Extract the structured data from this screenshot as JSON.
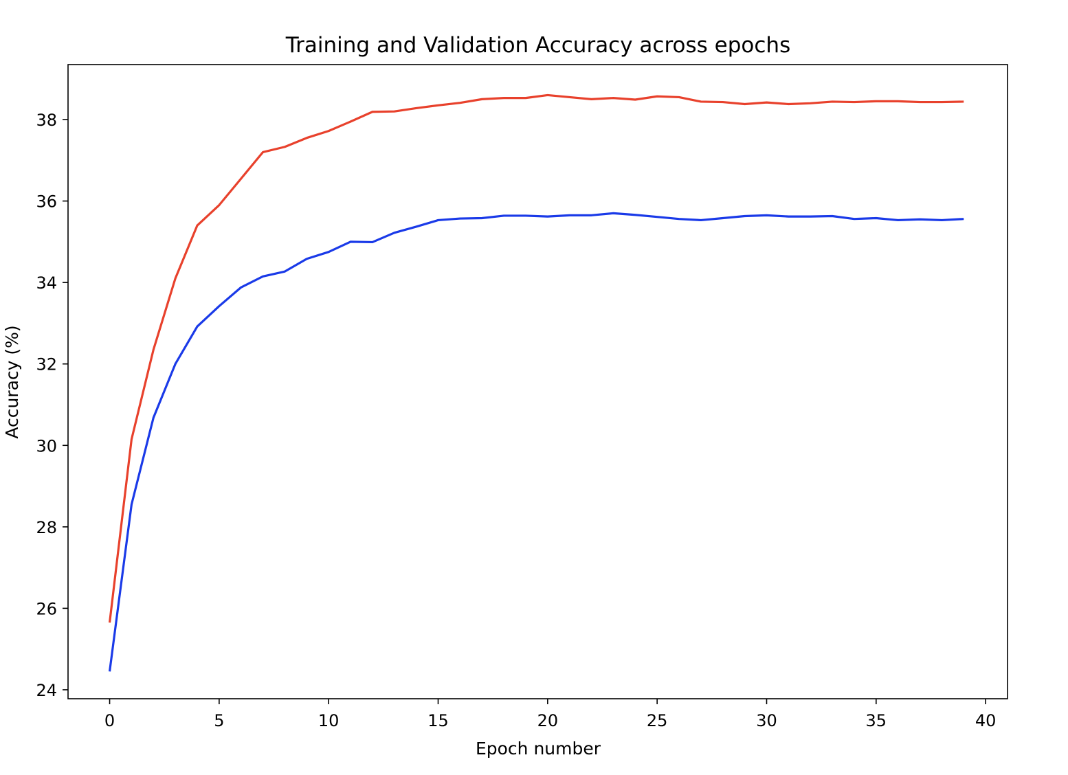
{
  "chart_data": {
    "type": "line",
    "title": "Training and Validation Accuracy across epochs",
    "xlabel": "Epoch number",
    "ylabel": "Accuracy (%)",
    "xlim": [
      -1.9,
      41
    ],
    "ylim": [
      23.78,
      39.35
    ],
    "xticks": [
      0,
      5,
      10,
      15,
      20,
      25,
      30,
      35,
      40
    ],
    "xtick_labels": [
      "0",
      "5",
      "10",
      "15",
      "20",
      "25",
      "30",
      "35",
      "40"
    ],
    "yticks": [
      24,
      26,
      28,
      30,
      32,
      34,
      36,
      38
    ],
    "ytick_labels": [
      "24",
      "26",
      "28",
      "30",
      "32",
      "34",
      "36",
      "38"
    ],
    "grid": false,
    "legend": "none",
    "x": [
      0,
      1,
      2,
      3,
      4,
      5,
      6,
      7,
      8,
      9,
      10,
      11,
      12,
      13,
      14,
      15,
      16,
      17,
      18,
      19,
      20,
      21,
      22,
      23,
      24,
      25,
      26,
      27,
      28,
      29,
      30,
      31,
      32,
      33,
      34,
      35,
      36,
      37,
      38,
      39
    ],
    "series": [
      {
        "color": "#e8412c",
        "values": [
          25.65,
          30.15,
          32.35,
          34.1,
          35.4,
          35.9,
          36.55,
          37.2,
          37.33,
          37.55,
          37.72,
          37.95,
          38.19,
          38.2,
          38.28,
          38.35,
          38.41,
          38.5,
          38.53,
          38.53,
          38.6,
          38.55,
          38.5,
          38.53,
          38.49,
          38.57,
          38.55,
          38.44,
          38.43,
          38.38,
          38.42,
          38.38,
          38.4,
          38.44,
          38.43,
          38.45,
          38.45,
          38.43,
          38.43,
          38.44
        ]
      },
      {
        "color": "#1a3ae8",
        "values": [
          24.45,
          28.55,
          30.68,
          32.0,
          32.92,
          33.42,
          33.88,
          34.15,
          34.27,
          34.58,
          34.75,
          35.0,
          34.99,
          35.22,
          35.37,
          35.53,
          35.57,
          35.58,
          35.64,
          35.64,
          35.62,
          35.65,
          35.65,
          35.7,
          35.66,
          35.61,
          35.56,
          35.53,
          35.58,
          35.63,
          35.65,
          35.62,
          35.62,
          35.63,
          35.56,
          35.58,
          35.53,
          35.55,
          35.53,
          35.56
        ]
      }
    ]
  }
}
